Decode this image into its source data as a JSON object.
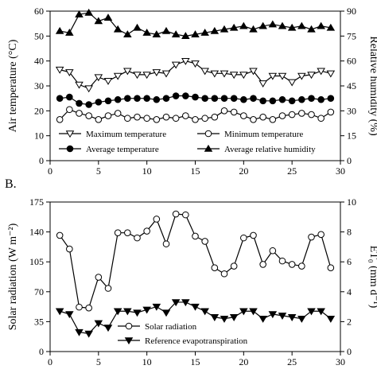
{
  "chart_data": [
    {
      "panel_label": "",
      "type": "line",
      "title": "",
      "x": [
        1,
        2,
        3,
        4,
        5,
        6,
        7,
        8,
        9,
        10,
        11,
        12,
        13,
        14,
        15,
        16,
        17,
        18,
        19,
        20,
        21,
        22,
        23,
        24,
        25,
        26,
        27,
        28,
        29
      ],
      "xlim": [
        0,
        30
      ],
      "xticks": [
        "0",
        "5",
        "10",
        "15",
        "20",
        "25",
        "30"
      ],
      "xtick_values": [
        0,
        5,
        10,
        15,
        20,
        25,
        30
      ],
      "ylabel": "Air temperature (°C)",
      "ylim": [
        0,
        60
      ],
      "yticks": [
        "0",
        "10",
        "20",
        "30",
        "40",
        "50",
        "60"
      ],
      "ytick_values": [
        0,
        10,
        20,
        30,
        40,
        50,
        60
      ],
      "y2label": "Relative humidity (%)",
      "y2lim": [
        0,
        90
      ],
      "y2ticks": [
        "0",
        "15",
        "30",
        "45",
        "60",
        "75",
        "90"
      ],
      "y2tick_values": [
        0,
        15,
        30,
        45,
        60,
        75,
        90
      ],
      "grid": false,
      "legend_position": "bottom",
      "series": [
        {
          "name": "Maximum temperature",
          "marker": "triangle-down-open",
          "axis": "left",
          "values": [
            36.5,
            35.5,
            30.5,
            29,
            33.5,
            32,
            34,
            36,
            34.5,
            34.5,
            35.5,
            35,
            38.5,
            40,
            39,
            36,
            35,
            35,
            34.5,
            34.5,
            36,
            31,
            34,
            34,
            31.5,
            34,
            34.5,
            36,
            35
          ]
        },
        {
          "name": "Minimum temperature",
          "marker": "circle-open",
          "axis": "left",
          "values": [
            16.5,
            20.5,
            19,
            18,
            16.5,
            18,
            19,
            17,
            17.5,
            17,
            16.5,
            17.5,
            17,
            18,
            16.5,
            17,
            17.5,
            20,
            19.5,
            18,
            16.5,
            17.5,
            16.5,
            18,
            18.5,
            19,
            18.5,
            17,
            19.5
          ]
        },
        {
          "name": "Average temperature",
          "marker": "circle-filled",
          "axis": "left",
          "values": [
            25,
            25.5,
            23,
            22.5,
            23.5,
            24,
            24.5,
            25,
            25,
            25,
            24.5,
            25,
            26,
            26,
            25.5,
            25,
            25,
            25,
            25,
            24.5,
            25,
            24,
            24,
            24.5,
            24,
            24.5,
            25,
            24.5,
            25
          ]
        },
        {
          "name": "Average relative humidity",
          "marker": "triangle-up-filled",
          "axis": "right",
          "values": [
            78,
            77,
            88,
            89,
            84,
            86,
            79,
            76,
            80,
            77,
            76,
            78,
            76,
            75,
            76,
            77,
            78,
            79,
            80,
            81,
            79,
            81,
            82,
            81,
            80,
            81,
            79,
            81,
            80
          ]
        }
      ]
    },
    {
      "panel_label": "B.",
      "type": "line",
      "title": "",
      "x": [
        1,
        2,
        3,
        4,
        5,
        6,
        7,
        8,
        9,
        10,
        11,
        12,
        13,
        14,
        15,
        16,
        17,
        18,
        19,
        20,
        21,
        22,
        23,
        24,
        25,
        26,
        27,
        28,
        29
      ],
      "xlim": [
        0,
        30
      ],
      "xticks": [
        "0",
        "5",
        "10",
        "15",
        "20",
        "25",
        "30"
      ],
      "xtick_values": [
        0,
        5,
        10,
        15,
        20,
        25,
        30
      ],
      "ylabel": "Solar radiation (W m⁻²)",
      "ylim": [
        0,
        175
      ],
      "yticks": [
        "0",
        "35",
        "70",
        "105",
        "140",
        "175"
      ],
      "ytick_values": [
        0,
        35,
        70,
        105,
        140,
        175
      ],
      "y2label": "ET₀ (mm d⁻¹)",
      "y2lim": [
        0,
        10
      ],
      "y2ticks": [
        "0",
        "2",
        "4",
        "6",
        "8",
        "10"
      ],
      "y2tick_values": [
        0,
        2,
        4,
        6,
        8,
        10
      ],
      "grid": false,
      "legend_position": "bottom-left",
      "series": [
        {
          "name": "Solar radiation",
          "marker": "circle-open",
          "axis": "left",
          "values": [
            136,
            120,
            52,
            51,
            87,
            74,
            139,
            139,
            133,
            141,
            155,
            126,
            161,
            160,
            135,
            129,
            98,
            91,
            100,
            133,
            136,
            102,
            118,
            106,
            102,
            100,
            134,
            137,
            98
          ]
        },
        {
          "name": "Reference evapotranspiration",
          "marker": "triangle-down-filled",
          "axis": "right",
          "values": [
            2.7,
            2.5,
            1.3,
            1.2,
            1.9,
            1.6,
            2.7,
            2.7,
            2.6,
            2.8,
            3.0,
            2.6,
            3.3,
            3.3,
            3.0,
            2.7,
            2.3,
            2.2,
            2.3,
            2.7,
            2.7,
            2.2,
            2.5,
            2.4,
            2.3,
            2.2,
            2.7,
            2.7,
            2.2
          ]
        }
      ]
    }
  ]
}
